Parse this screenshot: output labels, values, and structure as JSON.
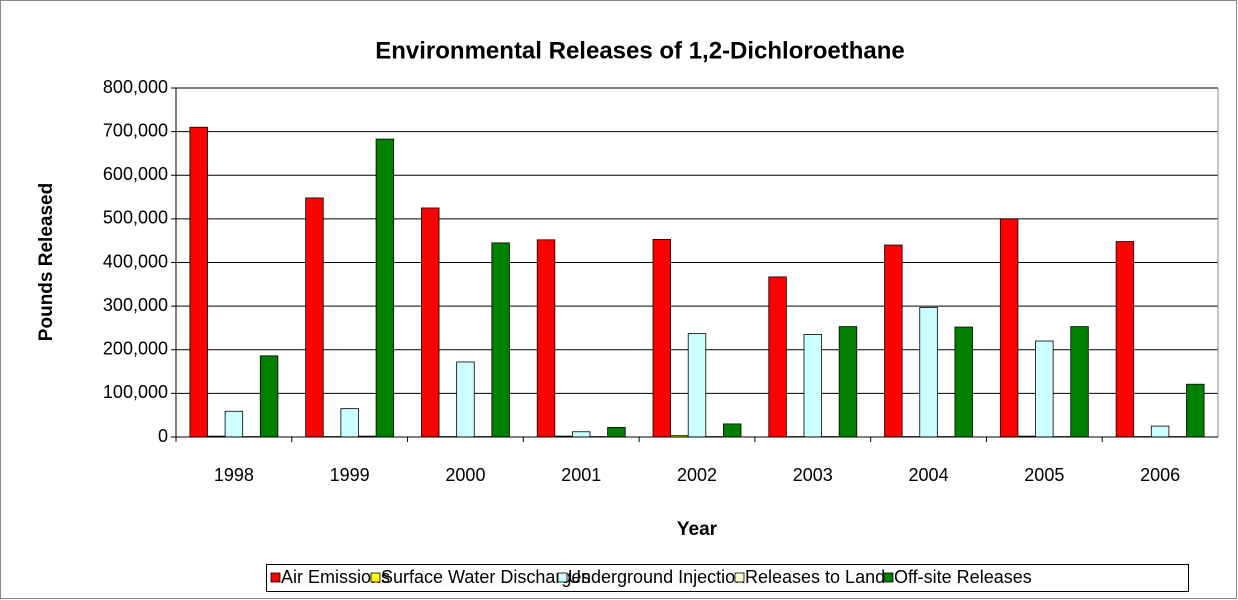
{
  "chart_data": {
    "type": "bar",
    "title": "Environmental Releases of 1,2-Dichloroethane",
    "x_label": "Year",
    "y_label": "Pounds Released",
    "categories": [
      "1998",
      "1999",
      "2000",
      "2001",
      "2002",
      "2003",
      "2004",
      "2005",
      "2006"
    ],
    "series": [
      {
        "name": "Air Emissions",
        "color": "#ff0000",
        "values": [
          710000,
          548000,
          525000,
          452000,
          453000,
          367000,
          440000,
          500000,
          448000
        ]
      },
      {
        "name": "Surface Water Discharges",
        "color": "#ffff00",
        "values": [
          2000,
          1000,
          1000,
          2000,
          3000,
          1000,
          1000,
          2000,
          1000
        ]
      },
      {
        "name": "Underground Injection",
        "color": "#ccffff",
        "values": [
          59000,
          65000,
          172000,
          12000,
          237000,
          235000,
          297000,
          220000,
          25000
        ]
      },
      {
        "name": "Releases to Land",
        "color": "#ffffcc",
        "values": [
          1000,
          2000,
          1000,
          1000,
          1000,
          1000,
          1000,
          1000,
          1000
        ]
      },
      {
        "name": "Off-site Releases",
        "color": "#008000",
        "values": [
          186000,
          683000,
          445000,
          22000,
          30000,
          253000,
          252000,
          253000,
          121000
        ]
      }
    ],
    "ylim": [
      0,
      800000
    ],
    "yticks": [
      0,
      {
        "value": 100000,
        "label": "100,000"
      },
      {
        "value": 200000,
        "label": "200,000"
      },
      {
        "value": 300000,
        "label": "300,000"
      },
      {
        "value": 400000,
        "label": "400,000"
      },
      {
        "value": 500000,
        "label": "500,000"
      },
      {
        "value": 600000,
        "label": "600,000"
      },
      {
        "value": 700000,
        "label": "700,000"
      },
      {
        "value": 800000,
        "label": "800,000"
      }
    ],
    "grid": true,
    "legend": "bottom"
  }
}
